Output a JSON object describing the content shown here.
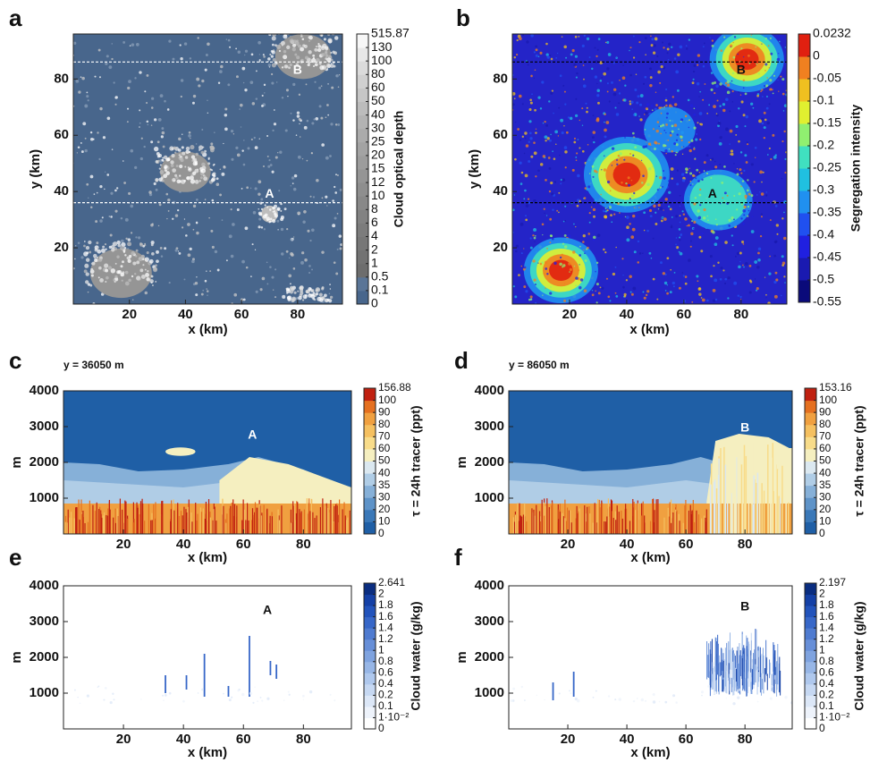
{
  "chart_data": [
    {
      "type": "heatmap",
      "panel": "a",
      "xlabel": "x (km)",
      "ylabel": "y (km)",
      "xlim": [
        0,
        96
      ],
      "ylim": [
        0,
        96
      ],
      "xticks": [
        20,
        40,
        60,
        80
      ],
      "yticks": [
        20,
        40,
        60,
        80
      ],
      "field_color": "#48668c",
      "hlines": [
        36.05,
        86.05
      ],
      "hline_color": "#ffffff",
      "annotations": [
        "A",
        "B"
      ],
      "colorbar": {
        "label": "Cloud optical depth",
        "ticks": [
          0,
          0.1,
          0.5,
          1,
          2,
          4,
          6,
          8,
          10,
          12,
          15,
          20,
          25,
          30,
          40,
          50,
          60,
          80,
          100,
          130,
          515.87
        ],
        "colors": [
          "#48668c",
          "#5a7597",
          "#6d6d6d",
          "#727272",
          "#777777",
          "#7c7c7c",
          "#828282",
          "#888888",
          "#8e8e8e",
          "#959595",
          "#9c9c9c",
          "#a3a3a3",
          "#ababab",
          "#b3b3b3",
          "#bcbcbc",
          "#c6c6c6",
          "#d0d0d0",
          "#dbdbdb",
          "#e8e8e8",
          "#f7f7f7"
        ]
      }
    },
    {
      "type": "heatmap",
      "panel": "b",
      "xlabel": "x (km)",
      "ylabel": "y (km)",
      "xlim": [
        0,
        96
      ],
      "ylim": [
        0,
        96
      ],
      "xticks": [
        20,
        40,
        60,
        80
      ],
      "yticks": [
        20,
        40,
        60,
        80
      ],
      "field_color": "#2424c8",
      "hlines": [
        36.05,
        86.05
      ],
      "hline_color": "#000000",
      "annotations": [
        "A",
        "B"
      ],
      "colorbar": {
        "label": "Segregation intensity",
        "ticks": [
          -0.55,
          -0.5,
          -0.45,
          -0.4,
          -0.35,
          -0.3,
          -0.25,
          -0.2,
          -0.15,
          -0.1,
          -0.05,
          0,
          0.0232
        ],
        "colors": [
          "#0a0a7a",
          "#1a1ab0",
          "#2020e0",
          "#2050f0",
          "#2090f0",
          "#20c0e0",
          "#40e0c0",
          "#90f070",
          "#e0f030",
          "#f0c020",
          "#f08020",
          "#e02010"
        ]
      }
    },
    {
      "type": "heatmap",
      "panel": "c",
      "subtitle": "y = 36050 m",
      "xlabel": "x (km)",
      "ylabel": "m",
      "xlim": [
        0,
        96
      ],
      "ylim": [
        0,
        4000
      ],
      "xticks": [
        20,
        40,
        60,
        80
      ],
      "yticks": [
        1000,
        2000,
        3000,
        4000
      ],
      "field_color": "#1f5fa6",
      "annotations": [
        "A"
      ],
      "colorbar": {
        "label": "τ = 24h tracer (ppt)",
        "ticks": [
          0,
          10,
          20,
          30,
          35,
          40,
          50,
          60,
          70,
          80,
          90,
          100,
          156.88
        ],
        "colors": [
          "#1f5fa6",
          "#3a78b8",
          "#5e93c8",
          "#86b0d8",
          "#b0cde6",
          "#dbe8f0",
          "#f5efc0",
          "#f8dc8a",
          "#f5c060",
          "#f0a040",
          "#e57020",
          "#c02010"
        ]
      }
    },
    {
      "type": "heatmap",
      "panel": "d",
      "subtitle": "y = 86050 m",
      "xlabel": "x (km)",
      "ylabel": "m",
      "xlim": [
        0,
        96
      ],
      "ylim": [
        0,
        4000
      ],
      "xticks": [
        20,
        40,
        60,
        80
      ],
      "yticks": [
        1000,
        2000,
        3000,
        4000
      ],
      "field_color": "#1f5fa6",
      "annotations": [
        "B"
      ],
      "colorbar": {
        "label": "τ = 24h tracer (ppt)",
        "ticks": [
          0,
          10,
          20,
          30,
          35,
          40,
          50,
          60,
          70,
          80,
          90,
          100,
          153.16
        ],
        "colors": [
          "#1f5fa6",
          "#3a78b8",
          "#5e93c8",
          "#86b0d8",
          "#b0cde6",
          "#dbe8f0",
          "#f5efc0",
          "#f8dc8a",
          "#f5c060",
          "#f0a040",
          "#e57020",
          "#c02010"
        ]
      }
    },
    {
      "type": "heatmap",
      "panel": "e",
      "xlabel": "x (km)",
      "ylabel": "m",
      "xlim": [
        0,
        96
      ],
      "ylim": [
        0,
        4000
      ],
      "xticks": [
        20,
        40,
        60,
        80
      ],
      "yticks": [
        1000,
        2000,
        3000,
        4000
      ],
      "field_color": "#ffffff",
      "annotations": [
        "A"
      ],
      "colorbar": {
        "label": "Cloud water (g/kg)",
        "ticks": [
          0,
          {
            "value": 0.01,
            "label": "1·10⁻²"
          },
          0.1,
          0.2,
          0.4,
          0.6,
          0.8,
          1,
          1.2,
          1.4,
          1.6,
          1.8,
          2,
          2.641
        ],
        "colors": [
          "#ffffff",
          "#eef3fb",
          "#dce7f7",
          "#c6d8f2",
          "#afc8ed",
          "#97b6e6",
          "#7fa3df",
          "#678fd8",
          "#4f7bd0",
          "#3767c8",
          "#2253bb",
          "#1440a6",
          "#0a2d80"
        ]
      }
    },
    {
      "type": "heatmap",
      "panel": "f",
      "xlabel": "x (km)",
      "ylabel": "m",
      "xlim": [
        0,
        96
      ],
      "ylim": [
        0,
        4000
      ],
      "xticks": [
        20,
        40,
        60,
        80
      ],
      "yticks": [
        1000,
        2000,
        3000,
        4000
      ],
      "field_color": "#ffffff",
      "annotations": [
        "B"
      ],
      "colorbar": {
        "label": "Cloud water (g/kg)",
        "ticks": [
          0,
          {
            "value": 0.01,
            "label": "1·10⁻²"
          },
          0.1,
          0.2,
          0.4,
          0.6,
          0.8,
          1,
          1.2,
          1.4,
          1.6,
          1.8,
          2,
          2.197
        ],
        "colors": [
          "#ffffff",
          "#eef3fb",
          "#dce7f7",
          "#c6d8f2",
          "#afc8ed",
          "#97b6e6",
          "#7fa3df",
          "#678fd8",
          "#4f7bd0",
          "#3767c8",
          "#2253bb",
          "#1440a6",
          "#0a2d80"
        ]
      }
    }
  ]
}
